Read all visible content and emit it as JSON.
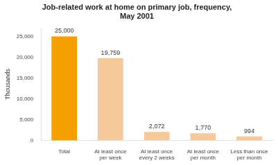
{
  "chart_data": {
    "type": "bar",
    "title": "Job-related work at home on primary job, frequency,\nMay 2001",
    "categories": [
      "Total",
      "At least once\nper week",
      "At least once\nevery 2 weeks",
      "At least once\nper month",
      "Less than once\nper month"
    ],
    "values": [
      25000,
      19759,
      2072,
      1770,
      994
    ],
    "value_labels": [
      "25,000",
      "19,759",
      "2,072",
      "1,770",
      "994"
    ],
    "data_labels": true,
    "colors": [
      "#F5A000",
      "#F5C99A",
      "#F5C99A",
      "#F5C99A",
      "#F5C99A"
    ],
    "ylabel": "Thousands",
    "ylim": [
      0,
      27000
    ],
    "yticks": [
      0,
      {
        "value": 5000,
        "label": "5,000"
      },
      {
        "value": 10000,
        "label": "10,000"
      },
      {
        "value": 15000,
        "label": "15,000"
      },
      {
        "value": 20000,
        "label": "20,000"
      },
      {
        "value": 25000,
        "label": "25,000"
      }
    ],
    "grid": false,
    "legend": false
  }
}
